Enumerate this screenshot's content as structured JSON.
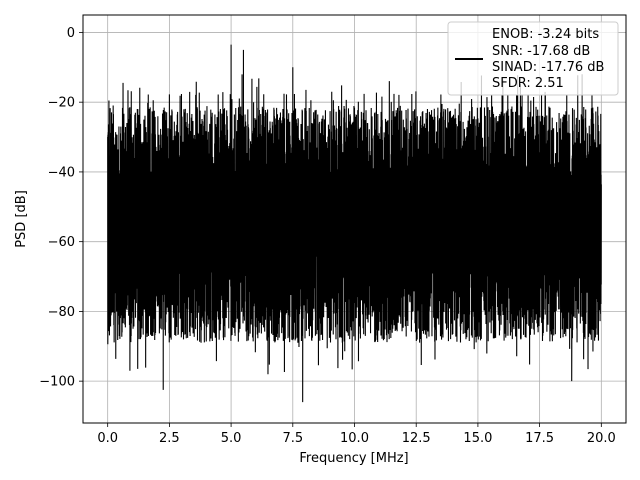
{
  "chart_data": {
    "type": "line",
    "title": "",
    "xlabel": "Frequency [MHz]",
    "ylabel": "PSD [dB]",
    "xlim": [
      -1.0,
      21.0
    ],
    "ylim": [
      -112,
      5
    ],
    "xticks": [
      0.0,
      2.5,
      5.0,
      7.5,
      10.0,
      12.5,
      15.0,
      17.5,
      20.0
    ],
    "xtick_labels": [
      "0.0",
      "2.5",
      "5.0",
      "7.5",
      "10.0",
      "12.5",
      "15.0",
      "17.5",
      "20.0"
    ],
    "yticks": [
      0,
      -20,
      -40,
      -60,
      -80,
      -100
    ],
    "ytick_labels": [
      "0",
      "−20",
      "−40",
      "−60",
      "−80",
      "−100"
    ],
    "grid": true,
    "legend_position": "top-right",
    "series": [
      {
        "name": "ENOB: -3.24 bits\nSNR: -17.68 dB\nSINAD: -17.76 dB\nSFDR: 2.51",
        "color": "#000000",
        "x_range": [
          0.0,
          20.0
        ],
        "noise_floor_db": -55,
        "peak_max_db": -3.5,
        "trough_min_db": -106,
        "notable_peaks": [
          {
            "x": 0.05,
            "y": -19.5
          },
          {
            "x": 5.0,
            "y": -3.5
          },
          {
            "x": 5.5,
            "y": -5.0
          },
          {
            "x": 7.5,
            "y": -10.0
          }
        ],
        "notable_troughs": [
          {
            "x": 0.9,
            "y": -97.0
          },
          {
            "x": 2.25,
            "y": -102.5
          },
          {
            "x": 7.9,
            "y": -106.0
          },
          {
            "x": 18.8,
            "y": -100.0
          }
        ]
      }
    ],
    "legend_lines": [
      "ENOB: -3.24 bits",
      "SNR: -17.68 dB",
      "SINAD: -17.76 dB",
      "SFDR: 2.51"
    ]
  }
}
